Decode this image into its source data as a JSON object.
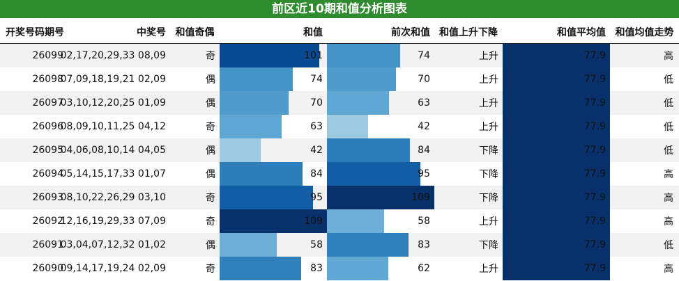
{
  "title": "前区近10期和值分析图表",
  "headers": {
    "issue": "开奖号码期号",
    "numbers": "中奖号",
    "parity": "和值奇偶",
    "sum": "和值",
    "prev_sum": "前次和值",
    "trend": "和值上升下降",
    "avg": "和值平均值",
    "avg_trend": "和值均值走势"
  },
  "colors": {
    "title_bg": "#2e8b2e",
    "row_shade": "#f2f2f2",
    "avg_bar": "#08306b",
    "blues_low": "#c6dbef",
    "blues_high": "#08306b"
  },
  "chart_data": {
    "type": "table",
    "color_scale_range": [
      42,
      109
    ],
    "rows": [
      {
        "issue": "26099",
        "numbers": "02,17,20,29,33 08,09",
        "parity": "奇",
        "sum": 101,
        "prev_sum": 74,
        "trend": "上升",
        "avg": "77.9",
        "avg_trend": "高"
      },
      {
        "issue": "26098",
        "numbers": "07,09,18,19,21 02,09",
        "parity": "偶",
        "sum": 74,
        "prev_sum": 70,
        "trend": "上升",
        "avg": "77.9",
        "avg_trend": "低"
      },
      {
        "issue": "26097",
        "numbers": "03,10,12,20,25 01,09",
        "parity": "偶",
        "sum": 70,
        "prev_sum": 63,
        "trend": "上升",
        "avg": "77.9",
        "avg_trend": "低"
      },
      {
        "issue": "26096",
        "numbers": "08,09,10,11,25 04,12",
        "parity": "奇",
        "sum": 63,
        "prev_sum": 42,
        "trend": "上升",
        "avg": "77.9",
        "avg_trend": "低"
      },
      {
        "issue": "26095",
        "numbers": "04,06,08,10,14 04,05",
        "parity": "偶",
        "sum": 42,
        "prev_sum": 84,
        "trend": "下降",
        "avg": "77.9",
        "avg_trend": "低"
      },
      {
        "issue": "26094",
        "numbers": "05,14,15,17,33 01,07",
        "parity": "偶",
        "sum": 84,
        "prev_sum": 95,
        "trend": "下降",
        "avg": "77.9",
        "avg_trend": "高"
      },
      {
        "issue": "26093",
        "numbers": "08,10,22,26,29 03,10",
        "parity": "奇",
        "sum": 95,
        "prev_sum": 109,
        "trend": "下降",
        "avg": "77.9",
        "avg_trend": "高"
      },
      {
        "issue": "26092",
        "numbers": "12,16,19,29,33 07,09",
        "parity": "奇",
        "sum": 109,
        "prev_sum": 58,
        "trend": "上升",
        "avg": "77.9",
        "avg_trend": "高"
      },
      {
        "issue": "26091",
        "numbers": "03,04,07,12,32 01,02",
        "parity": "偶",
        "sum": 58,
        "prev_sum": 83,
        "trend": "下降",
        "avg": "77.9",
        "avg_trend": "低"
      },
      {
        "issue": "26090",
        "numbers": "09,14,17,19,24 02,09",
        "parity": "奇",
        "sum": 83,
        "prev_sum": 62,
        "trend": "上升",
        "avg": "77.9",
        "avg_trend": "高"
      }
    ]
  }
}
